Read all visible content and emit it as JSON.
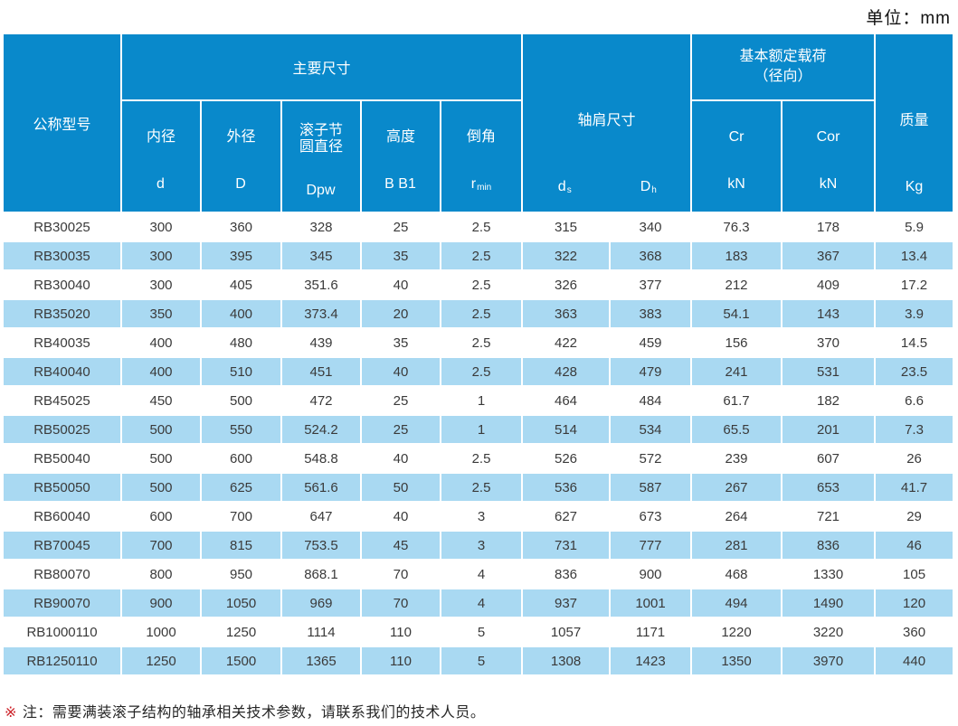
{
  "unit_label": "单位：mm",
  "note": {
    "marker": "※",
    "text": "注：需要满装滚子结构的轴承相关技术参数，请联系我们的技术人员。"
  },
  "colors": {
    "header_blue": "#0989cb",
    "row_alt_blue": "#a9d9f2",
    "note_marker_red": "#cc2128"
  },
  "table": {
    "header": {
      "model_label": "公称型号",
      "main_dims_label": "主要尺寸",
      "shoulder_label": "轴肩尺寸",
      "load_label_line1": "基本额定载荷",
      "load_label_line2": "（径向）",
      "mass_label": "质量",
      "mass_unit": "Kg",
      "inner": {
        "label": "内径",
        "unit": "d",
        "unit_sub": ""
      },
      "outer": {
        "label": "外径",
        "unit": "D",
        "unit_sub": ""
      },
      "pitch": {
        "label_line1": "滚子节",
        "label_line2": "圆直径",
        "unit": "Dpw",
        "unit_sub": ""
      },
      "height": {
        "label": "高度",
        "unit": "B B1",
        "unit_sub": ""
      },
      "chamfer": {
        "label": "倒角",
        "unit": "r",
        "unit_sub": "min"
      },
      "shoulder_ds": {
        "unit": "d",
        "unit_sub": "s"
      },
      "shoulder_dh": {
        "unit": "D",
        "unit_sub": "h"
      },
      "cr": {
        "label": "Cr",
        "unit": "kN"
      },
      "cor": {
        "label": "Cor",
        "unit": "kN"
      }
    },
    "rows": [
      [
        "RB30025",
        "300",
        "360",
        "328",
        "25",
        "2.5",
        "315",
        "340",
        "76.3",
        "178",
        "5.9"
      ],
      [
        "RB30035",
        "300",
        "395",
        "345",
        "35",
        "2.5",
        "322",
        "368",
        "183",
        "367",
        "13.4"
      ],
      [
        "RB30040",
        "300",
        "405",
        "351.6",
        "40",
        "2.5",
        "326",
        "377",
        "212",
        "409",
        "17.2"
      ],
      [
        "RB35020",
        "350",
        "400",
        "373.4",
        "20",
        "2.5",
        "363",
        "383",
        "54.1",
        "143",
        "3.9"
      ],
      [
        "RB40035",
        "400",
        "480",
        "439",
        "35",
        "2.5",
        "422",
        "459",
        "156",
        "370",
        "14.5"
      ],
      [
        "RB40040",
        "400",
        "510",
        "451",
        "40",
        "2.5",
        "428",
        "479",
        "241",
        "531",
        "23.5"
      ],
      [
        "RB45025",
        "450",
        "500",
        "472",
        "25",
        "1",
        "464",
        "484",
        "61.7",
        "182",
        "6.6"
      ],
      [
        "RB50025",
        "500",
        "550",
        "524.2",
        "25",
        "1",
        "514",
        "534",
        "65.5",
        "201",
        "7.3"
      ],
      [
        "RB50040",
        "500",
        "600",
        "548.8",
        "40",
        "2.5",
        "526",
        "572",
        "239",
        "607",
        "26"
      ],
      [
        "RB50050",
        "500",
        "625",
        "561.6",
        "50",
        "2.5",
        "536",
        "587",
        "267",
        "653",
        "41.7"
      ],
      [
        "RB60040",
        "600",
        "700",
        "647",
        "40",
        "3",
        "627",
        "673",
        "264",
        "721",
        "29"
      ],
      [
        "RB70045",
        "700",
        "815",
        "753.5",
        "45",
        "3",
        "731",
        "777",
        "281",
        "836",
        "46"
      ],
      [
        "RB80070",
        "800",
        "950",
        "868.1",
        "70",
        "4",
        "836",
        "900",
        "468",
        "1330",
        "105"
      ],
      [
        "RB90070",
        "900",
        "1050",
        "969",
        "70",
        "4",
        "937",
        "1001",
        "494",
        "1490",
        "120"
      ],
      [
        "RB1000110",
        "1000",
        "1250",
        "1114",
        "110",
        "5",
        "1057",
        "1171",
        "1220",
        "3220",
        "360"
      ],
      [
        "RB1250110",
        "1250",
        "1500",
        "1365",
        "110",
        "5",
        "1308",
        "1423",
        "1350",
        "3970",
        "440"
      ]
    ]
  }
}
